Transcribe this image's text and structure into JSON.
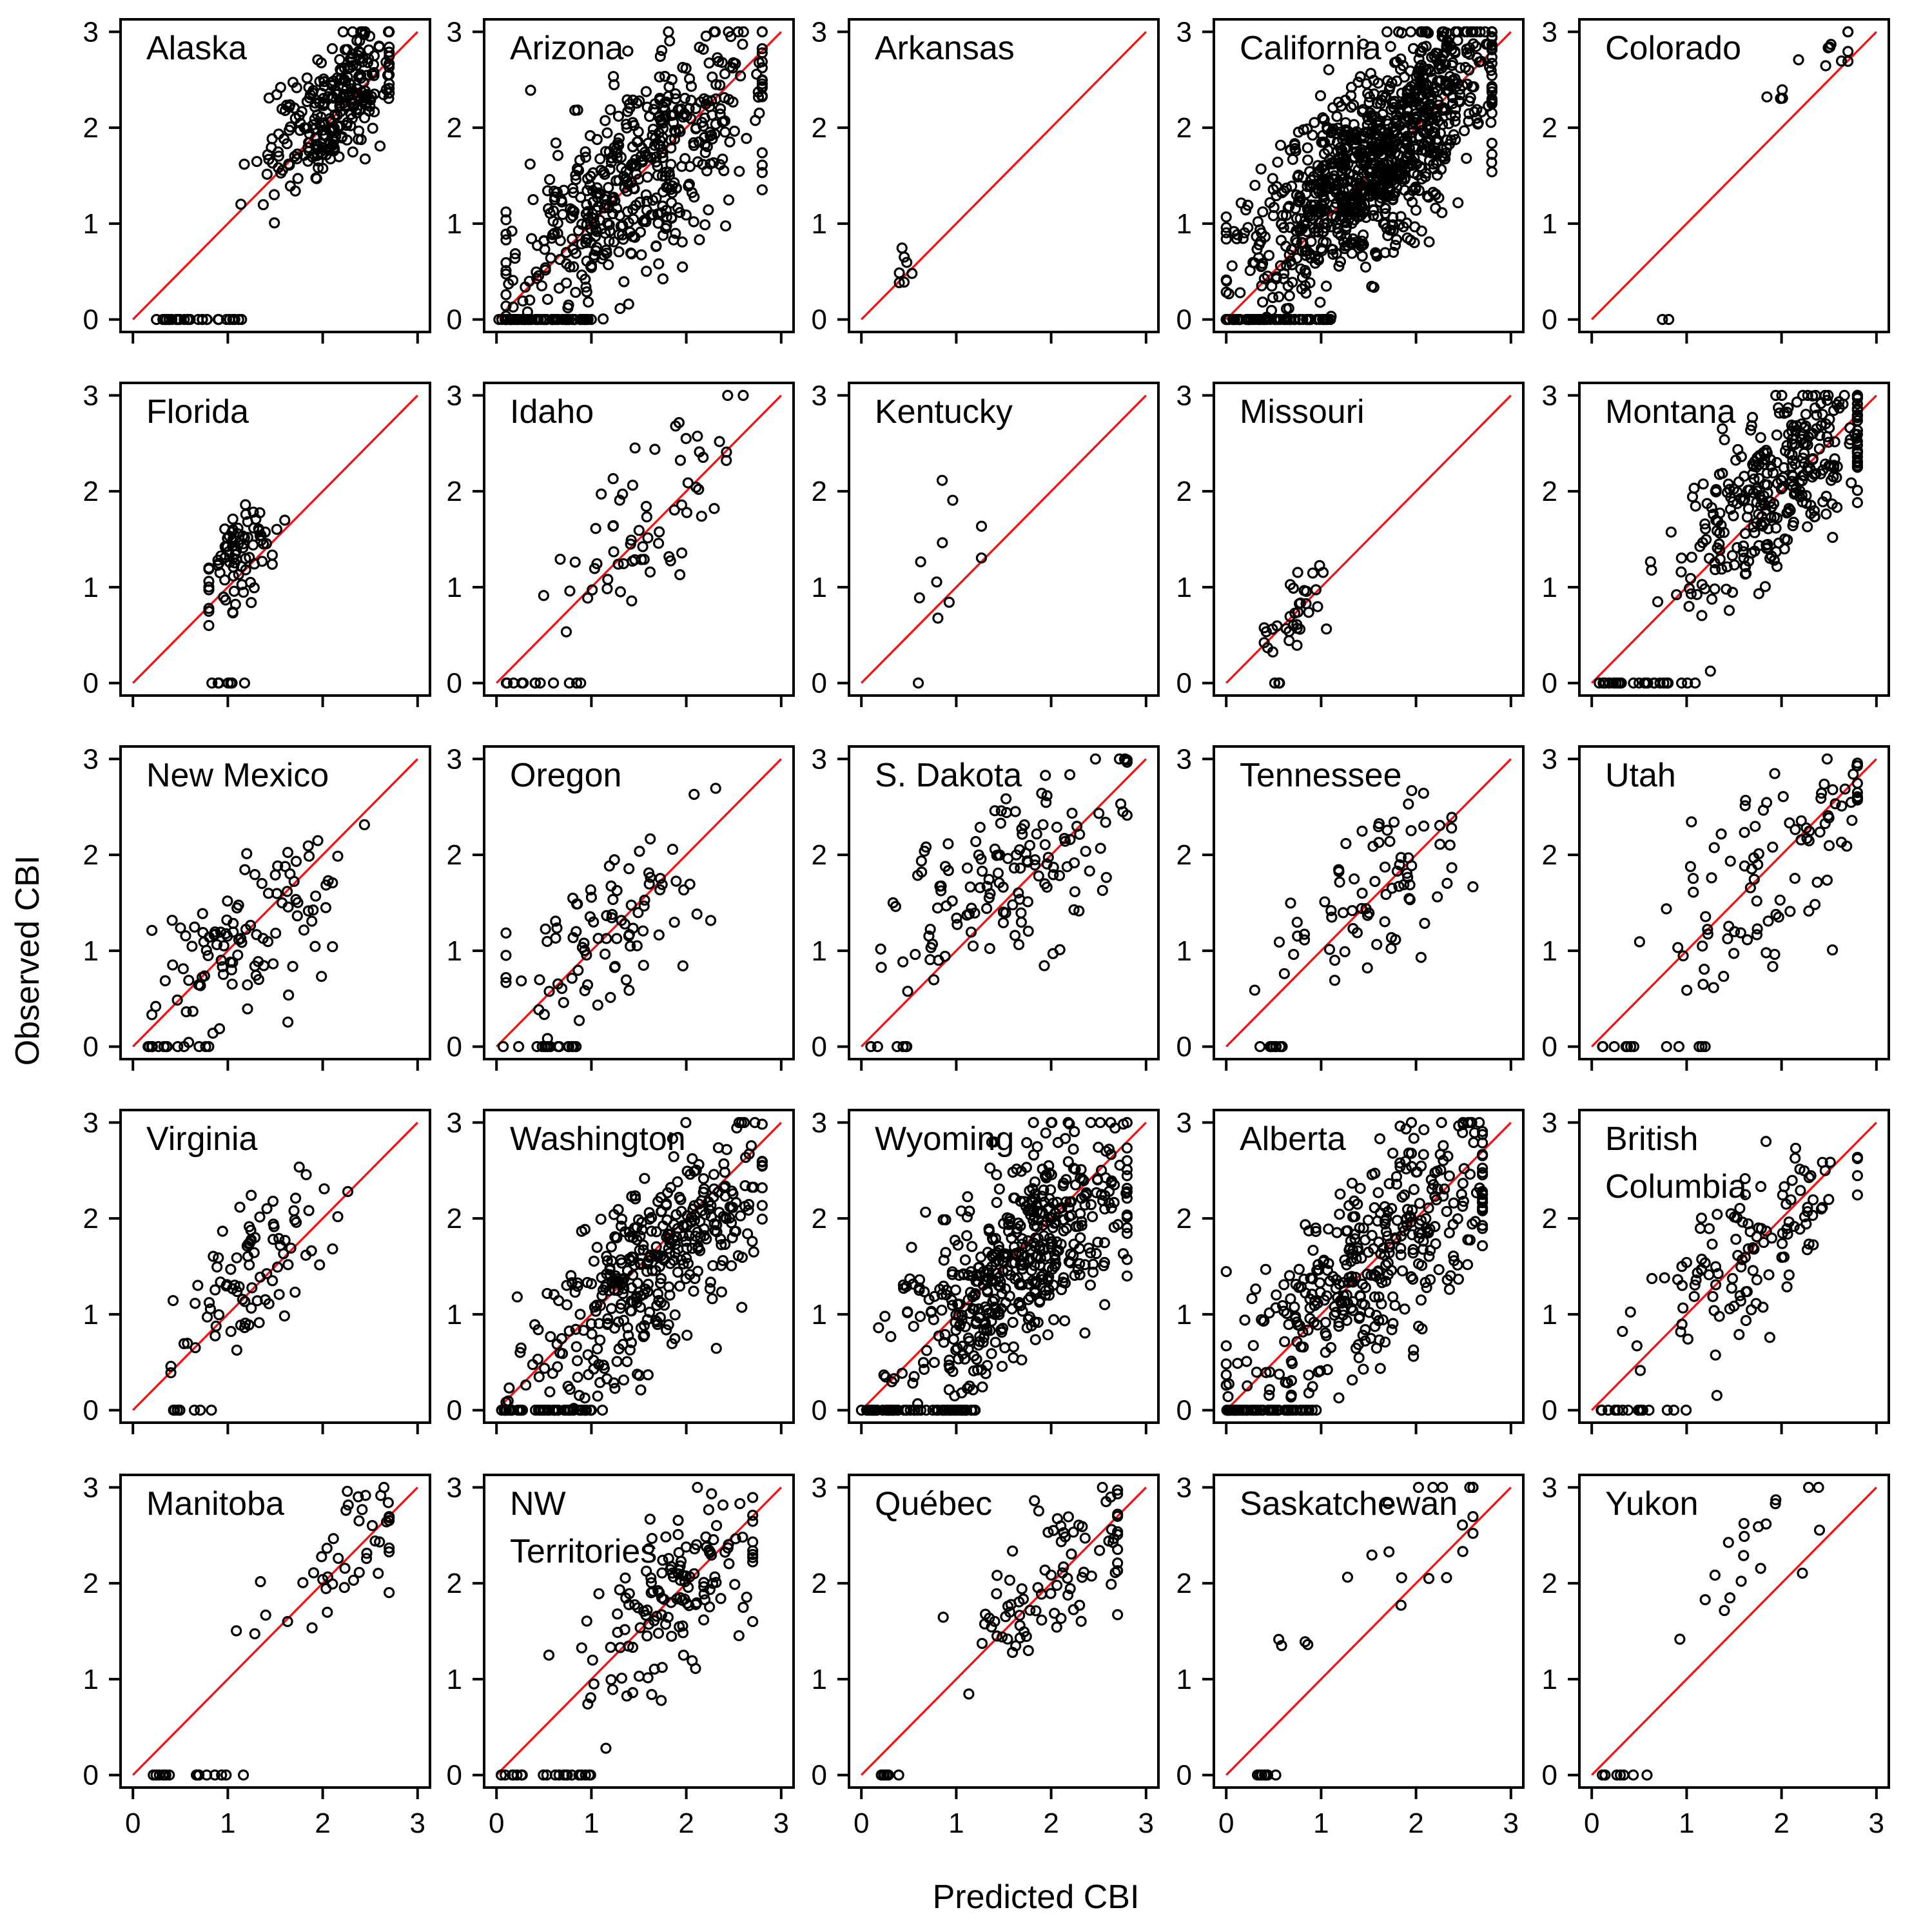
{
  "chart_data": {
    "type": "scatter",
    "layout": "5x5 small multiples",
    "xlabel": "Predicted CBI",
    "ylabel": "Observed CBI",
    "xlim": [
      0,
      3
    ],
    "ylim": [
      0,
      3
    ],
    "xticks": [
      "0",
      "1",
      "2",
      "3"
    ],
    "yticks": [
      "0",
      "1",
      "2",
      "3"
    ],
    "reference_line": {
      "slope": 1,
      "intercept": 0,
      "color": "#e8191a"
    },
    "point_color": "#000000",
    "panels": [
      {
        "title": "Alaska",
        "n_points": 500,
        "x_range": [
          0.3,
          2.7
        ],
        "center": [
          2.1,
          2.2
        ],
        "spread": [
          0.35,
          0.45
        ],
        "zeros": 30,
        "zero_range": [
          0.2,
          1.2
        ]
      },
      {
        "title": "Arizona",
        "n_points": 900,
        "x_range": [
          0.1,
          2.8
        ],
        "center": [
          1.5,
          1.5
        ],
        "spread": [
          0.7,
          0.75
        ],
        "zeros": 60,
        "zero_range": [
          0.0,
          1.0
        ]
      },
      {
        "title": "Arkansas",
        "n_points": 12,
        "x_range": [
          0.4,
          0.55
        ],
        "center": [
          0.48,
          0.6
        ],
        "spread": [
          0.04,
          0.3
        ],
        "zeros": 0,
        "zero_range": [
          0.4,
          0.5
        ]
      },
      {
        "title": "California",
        "n_points": 1800,
        "x_range": [
          0.0,
          2.8
        ],
        "center": [
          1.6,
          1.7
        ],
        "spread": [
          0.65,
          0.7
        ],
        "zeros": 60,
        "zero_range": [
          0.0,
          1.1
        ]
      },
      {
        "title": "Colorado",
        "n_points": 25,
        "x_range": [
          0.6,
          2.7
        ],
        "center": [
          2.4,
          2.7
        ],
        "spread": [
          0.35,
          0.35
        ],
        "zeros": 2,
        "zero_range": [
          0.6,
          1.2
        ]
      },
      {
        "title": "Florida",
        "n_points": 150,
        "x_range": [
          0.8,
          1.6
        ],
        "center": [
          1.1,
          1.3
        ],
        "spread": [
          0.2,
          0.35
        ],
        "zeros": 8,
        "zero_range": [
          0.8,
          1.2
        ]
      },
      {
        "title": "Idaho",
        "n_points": 120,
        "x_range": [
          0.2,
          2.6
        ],
        "center": [
          1.6,
          1.7
        ],
        "spread": [
          0.55,
          0.55
        ],
        "zeros": 10,
        "zero_range": [
          0.1,
          0.9
        ]
      },
      {
        "title": "Kentucky",
        "n_points": 18,
        "x_range": [
          0.6,
          1.6
        ],
        "center": [
          0.75,
          1.0
        ],
        "spread": [
          0.25,
          0.55
        ],
        "zeros": 1,
        "zero_range": [
          0.6,
          0.6
        ]
      },
      {
        "title": "Missouri",
        "n_points": 60,
        "x_range": [
          0.4,
          1.2
        ],
        "center": [
          0.75,
          0.75
        ],
        "spread": [
          0.18,
          0.35
        ],
        "zeros": 3,
        "zero_range": [
          0.4,
          0.6
        ]
      },
      {
        "title": "Montana",
        "n_points": 600,
        "x_range": [
          0.2,
          2.8
        ],
        "center": [
          2.0,
          2.1
        ],
        "spread": [
          0.55,
          0.6
        ],
        "zeros": 25,
        "zero_range": [
          0.0,
          1.1
        ]
      },
      {
        "title": "New Mexico",
        "n_points": 200,
        "x_range": [
          0.2,
          2.7
        ],
        "center": [
          1.2,
          1.2
        ],
        "spread": [
          0.55,
          0.6
        ],
        "zeros": 10,
        "zero_range": [
          0.1,
          0.8
        ]
      },
      {
        "title": "Oregon",
        "n_points": 160,
        "x_range": [
          0.1,
          2.6
        ],
        "center": [
          1.1,
          1.1
        ],
        "spread": [
          0.55,
          0.6
        ],
        "zeros": 15,
        "zero_range": [
          0.0,
          0.9
        ]
      },
      {
        "title": "S. Dakota",
        "n_points": 250,
        "x_range": [
          0.1,
          2.8
        ],
        "center": [
          1.6,
          1.8
        ],
        "spread": [
          0.65,
          0.65
        ],
        "zeros": 5,
        "zero_range": [
          0.1,
          0.5
        ]
      },
      {
        "title": "Tennessee",
        "n_points": 140,
        "x_range": [
          0.3,
          2.6
        ],
        "center": [
          1.5,
          1.6
        ],
        "spread": [
          0.6,
          0.6
        ],
        "zeros": 8,
        "zero_range": [
          0.4,
          0.6
        ]
      },
      {
        "title": "Utah",
        "n_points": 170,
        "x_range": [
          0.1,
          2.8
        ],
        "center": [
          1.9,
          1.9
        ],
        "spread": [
          0.6,
          0.65
        ],
        "zeros": 12,
        "zero_range": [
          0.1,
          1.2
        ]
      },
      {
        "title": "Virginia",
        "n_points": 160,
        "x_range": [
          0.4,
          2.4
        ],
        "center": [
          1.2,
          1.4
        ],
        "spread": [
          0.45,
          0.5
        ],
        "zeros": 8,
        "zero_range": [
          0.4,
          1.0
        ]
      },
      {
        "title": "Washington",
        "n_points": 700,
        "x_range": [
          0.1,
          2.8
        ],
        "center": [
          1.6,
          1.5
        ],
        "spread": [
          0.6,
          0.7
        ],
        "zeros": 45,
        "zero_range": [
          0.0,
          1.0
        ]
      },
      {
        "title": "Wyoming",
        "n_points": 900,
        "x_range": [
          0.1,
          2.8
        ],
        "center": [
          1.7,
          1.6
        ],
        "spread": [
          0.6,
          0.7
        ],
        "zeros": 60,
        "zero_range": [
          0.0,
          1.2
        ]
      },
      {
        "title": "Alberta",
        "n_points": 700,
        "x_range": [
          0.0,
          2.7
        ],
        "center": [
          1.5,
          1.5
        ],
        "spread": [
          0.7,
          0.75
        ],
        "zeros": 50,
        "zero_range": [
          0.0,
          1.0
        ]
      },
      {
        "title": "British Columbia",
        "n_points": 220,
        "x_range": [
          0.1,
          2.8
        ],
        "center": [
          1.8,
          1.8
        ],
        "spread": [
          0.55,
          0.6
        ],
        "zeros": 15,
        "zero_range": [
          0.0,
          1.0
        ]
      },
      {
        "title": "Manitoba",
        "n_points": 80,
        "x_range": [
          0.2,
          2.7
        ],
        "center": [
          2.2,
          2.3
        ],
        "spread": [
          0.45,
          0.4
        ],
        "zeros": 15,
        "zero_range": [
          0.2,
          1.2
        ]
      },
      {
        "title": "NW Territories",
        "n_points": 260,
        "x_range": [
          0.0,
          2.7
        ],
        "center": [
          1.9,
          1.9
        ],
        "spread": [
          0.45,
          0.55
        ],
        "zeros": 20,
        "zero_range": [
          0.0,
          1.0
        ]
      },
      {
        "title": "Québec",
        "n_points": 160,
        "x_range": [
          0.2,
          2.7
        ],
        "center": [
          2.1,
          2.1
        ],
        "spread": [
          0.45,
          0.45
        ],
        "zeros": 6,
        "zero_range": [
          0.2,
          0.4
        ]
      },
      {
        "title": "Saskatchewan",
        "n_points": 40,
        "x_range": [
          0.1,
          2.6
        ],
        "center": [
          1.8,
          2.2
        ],
        "spread": [
          0.55,
          0.7
        ],
        "zeros": 8,
        "zero_range": [
          0.1,
          0.6
        ]
      },
      {
        "title": "Yukon",
        "n_points": 35,
        "x_range": [
          0.1,
          2.4
        ],
        "center": [
          1.8,
          2.4
        ],
        "spread": [
          0.5,
          0.55
        ],
        "zeros": 8,
        "zero_range": [
          0.1,
          0.6
        ]
      }
    ]
  }
}
